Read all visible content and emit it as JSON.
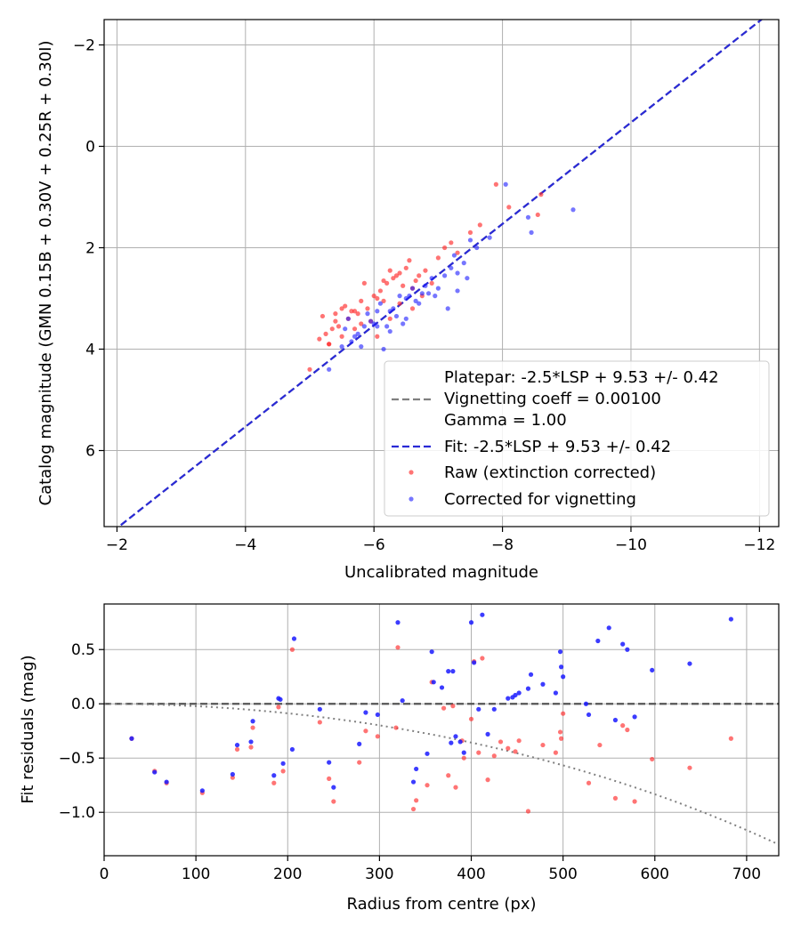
{
  "chart_data": [
    {
      "type": "scatter",
      "xlabel": "Uncalibrated magnitude",
      "ylabel": "Catalog magnitude (GMN 0.15B + 0.30V + 0.25R + 0.30I)",
      "xlim": [
        -1.8,
        -12.3
      ],
      "ylim": [
        7.5,
        -2.5
      ],
      "xticks": [
        -2,
        -4,
        -6,
        -8,
        -10,
        -12
      ],
      "yticks": [
        -2,
        0,
        2,
        4,
        6
      ],
      "xtick_labels": [
        "−2",
        "−4",
        "−6",
        "−8",
        "−10",
        "−12"
      ],
      "ytick_labels": [
        "−2",
        "0",
        "2",
        "4",
        "6"
      ],
      "grid": true,
      "legend_position": "bottom-right",
      "legend": {
        "platepar_line1": "Platepar: -2.5*LSP + 9.53 +/- 0.42",
        "platepar_line2": "Vignetting coeff = 0.00100",
        "platepar_line3": "Gamma = 1.00",
        "fit": "Fit: -2.5*LSP + 9.53 +/- 0.42",
        "raw": "Raw (extinction corrected)",
        "corrected": "Corrected for vignetting"
      },
      "lines": [
        {
          "name": "Platepar",
          "color": "#808080",
          "style": "dashed",
          "slope": -2.5,
          "intercept": 9.53,
          "x_uses": "lsp"
        },
        {
          "name": "Fit",
          "color": "#2a2ad6",
          "style": "dashed",
          "slope": -2.5,
          "intercept": 9.53,
          "x_uses": "lsp"
        }
      ],
      "series": [
        {
          "name": "Raw (extinction corrected)",
          "color": "#ff2a2a",
          "x": [
            -5.0,
            -5.2,
            -5.25,
            -5.3,
            -5.35,
            -5.4,
            -5.45,
            -5.5,
            -5.55,
            -5.6,
            -5.65,
            -5.7,
            -5.75,
            -5.8,
            -5.85,
            -5.9,
            -5.95,
            -6.0,
            -6.05,
            -6.1,
            -6.15,
            -6.2,
            -6.25,
            -6.3,
            -6.35,
            -6.4,
            -6.45,
            -6.5,
            -6.55,
            -6.6,
            -6.65,
            -6.7,
            -6.8,
            -6.9,
            -7.0,
            -7.2,
            -7.3,
            -7.5,
            -7.65,
            -7.9,
            -8.1,
            -8.55,
            -8.6,
            -5.3,
            -5.5,
            -5.8,
            -6.05,
            -6.25,
            -6.4,
            -6.6,
            -6.75,
            -7.1,
            -5.15,
            -5.4,
            -5.7,
            -6.15
          ],
          "y": [
            4.4,
            3.35,
            3.7,
            3.9,
            3.6,
            3.3,
            3.55,
            3.2,
            3.15,
            3.4,
            3.25,
            3.6,
            3.3,
            3.05,
            2.7,
            3.2,
            3.45,
            2.95,
            3.0,
            2.85,
            2.65,
            2.7,
            2.45,
            2.6,
            2.55,
            2.5,
            2.75,
            2.4,
            2.25,
            2.8,
            2.65,
            2.55,
            2.45,
            2.7,
            2.2,
            1.9,
            2.1,
            1.7,
            1.55,
            0.75,
            1.2,
            1.35,
            0.95,
            3.9,
            3.75,
            3.5,
            3.75,
            3.4,
            3.1,
            3.2,
            2.95,
            2.0,
            3.8,
            3.45,
            3.25,
            3.05
          ]
        },
        {
          "name": "Corrected for vignetting",
          "color": "#1a1aff",
          "x": [
            -5.3,
            -5.5,
            -5.55,
            -5.6,
            -5.7,
            -5.8,
            -5.85,
            -5.9,
            -6.0,
            -6.05,
            -6.1,
            -6.2,
            -6.25,
            -6.3,
            -6.4,
            -6.5,
            -6.55,
            -6.6,
            -6.7,
            -6.75,
            -6.8,
            -6.9,
            -7.0,
            -7.1,
            -7.2,
            -7.3,
            -7.4,
            -7.5,
            -7.6,
            -7.8,
            -8.05,
            -8.4,
            -8.45,
            -9.1,
            -5.65,
            -5.95,
            -6.15,
            -6.35,
            -6.45,
            -6.65,
            -6.85,
            -7.15,
            -7.25,
            -7.45,
            -5.75,
            -6.05,
            -6.25,
            -6.5,
            -6.95,
            -7.3
          ],
          "y": [
            4.4,
            3.95,
            3.6,
            3.4,
            3.75,
            3.95,
            3.55,
            3.3,
            3.5,
            3.25,
            3.1,
            3.55,
            3.65,
            3.2,
            2.95,
            3.0,
            2.95,
            2.8,
            3.1,
            2.9,
            2.75,
            2.6,
            2.8,
            2.55,
            2.4,
            2.5,
            2.3,
            1.85,
            2.0,
            1.8,
            0.75,
            1.4,
            1.7,
            1.25,
            3.85,
            3.45,
            4.0,
            3.35,
            3.5,
            3.05,
            2.9,
            3.2,
            2.15,
            2.6,
            3.7,
            3.55,
            3.25,
            3.4,
            2.95,
            2.85
          ]
        }
      ]
    },
    {
      "type": "scatter",
      "xlabel": "Radius from centre (px)",
      "ylabel": "Fit residuals (mag)",
      "xlim": [
        0,
        735
      ],
      "ylim": [
        -1.4,
        0.92
      ],
      "xticks": [
        0,
        100,
        200,
        300,
        400,
        500,
        600,
        700
      ],
      "yticks": [
        0.5,
        0.0,
        -0.5,
        -1.0
      ],
      "xtick_labels": [
        "0",
        "100",
        "200",
        "300",
        "400",
        "500",
        "600",
        "700"
      ],
      "ytick_labels": [
        "0.5",
        "0.0",
        "−0.5",
        "−1.0"
      ],
      "grid": true,
      "reference_line": {
        "y": 0.0,
        "color": "#555555",
        "style": "dashed"
      },
      "vignetting_curve": {
        "color": "#808080",
        "style": "dotted",
        "coeff": 0.001,
        "formula": "-2.5*log10(cos(coeff*r)^4)"
      },
      "series": [
        {
          "name": "Raw",
          "color": "#ff2a2a",
          "x": [
            30,
            55,
            68,
            107,
            140,
            145,
            160,
            162,
            185,
            190,
            195,
            205,
            235,
            245,
            250,
            278,
            285,
            298,
            318,
            320,
            337,
            340,
            352,
            357,
            370,
            375,
            380,
            383,
            390,
            392,
            400,
            403,
            408,
            412,
            418,
            425,
            432,
            440,
            448,
            452,
            462,
            478,
            492,
            497,
            498,
            500,
            528,
            540,
            557,
            565,
            570,
            578,
            597,
            638,
            683
          ],
          "y": [
            -0.32,
            -0.62,
            -0.73,
            -0.82,
            -0.68,
            -0.42,
            -0.4,
            -0.22,
            -0.73,
            -0.03,
            -0.62,
            0.5,
            -0.17,
            -0.69,
            -0.9,
            -0.54,
            -0.25,
            -0.3,
            -0.22,
            0.52,
            -0.97,
            -0.89,
            -0.75,
            0.2,
            -0.04,
            -0.66,
            -0.02,
            -0.77,
            -0.34,
            -0.5,
            -0.14,
            0.39,
            -0.45,
            0.42,
            -0.7,
            -0.48,
            -0.35,
            -0.41,
            -0.44,
            -0.34,
            -0.99,
            -0.38,
            -0.45,
            -0.26,
            -0.32,
            -0.09,
            -0.73,
            -0.38,
            -0.87,
            -0.2,
            -0.24,
            -0.9,
            -0.51,
            -0.59,
            -0.32
          ]
        },
        {
          "name": "Corrected",
          "color": "#1a1aff",
          "x": [
            30,
            55,
            68,
            107,
            140,
            145,
            160,
            162,
            185,
            190,
            192,
            195,
            205,
            207,
            235,
            245,
            250,
            278,
            285,
            298,
            320,
            325,
            337,
            340,
            352,
            357,
            359,
            368,
            375,
            378,
            380,
            383,
            388,
            392,
            400,
            403,
            408,
            412,
            418,
            425,
            440,
            445,
            448,
            452,
            462,
            465,
            478,
            492,
            497,
            498,
            500,
            525,
            528,
            538,
            550,
            557,
            565,
            570,
            578,
            597,
            638,
            683
          ],
          "y": [
            -0.32,
            -0.63,
            -0.72,
            -0.8,
            -0.65,
            -0.38,
            -0.35,
            -0.16,
            -0.66,
            0.05,
            0.04,
            -0.55,
            -0.42,
            0.6,
            -0.05,
            -0.54,
            -0.77,
            -0.37,
            -0.08,
            -0.1,
            0.75,
            0.03,
            -0.72,
            -0.6,
            -0.46,
            0.48,
            0.2,
            0.15,
            0.3,
            -0.36,
            0.3,
            -0.3,
            -0.35,
            -0.45,
            0.75,
            0.38,
            -0.05,
            0.82,
            -0.28,
            -0.05,
            0.05,
            0.06,
            0.08,
            0.1,
            0.14,
            0.27,
            0.18,
            0.1,
            0.48,
            0.34,
            0.25,
            0.0,
            -0.1,
            0.58,
            0.7,
            -0.15,
            0.55,
            0.5,
            -0.12,
            0.31,
            0.37,
            0.78
          ]
        }
      ]
    }
  ]
}
